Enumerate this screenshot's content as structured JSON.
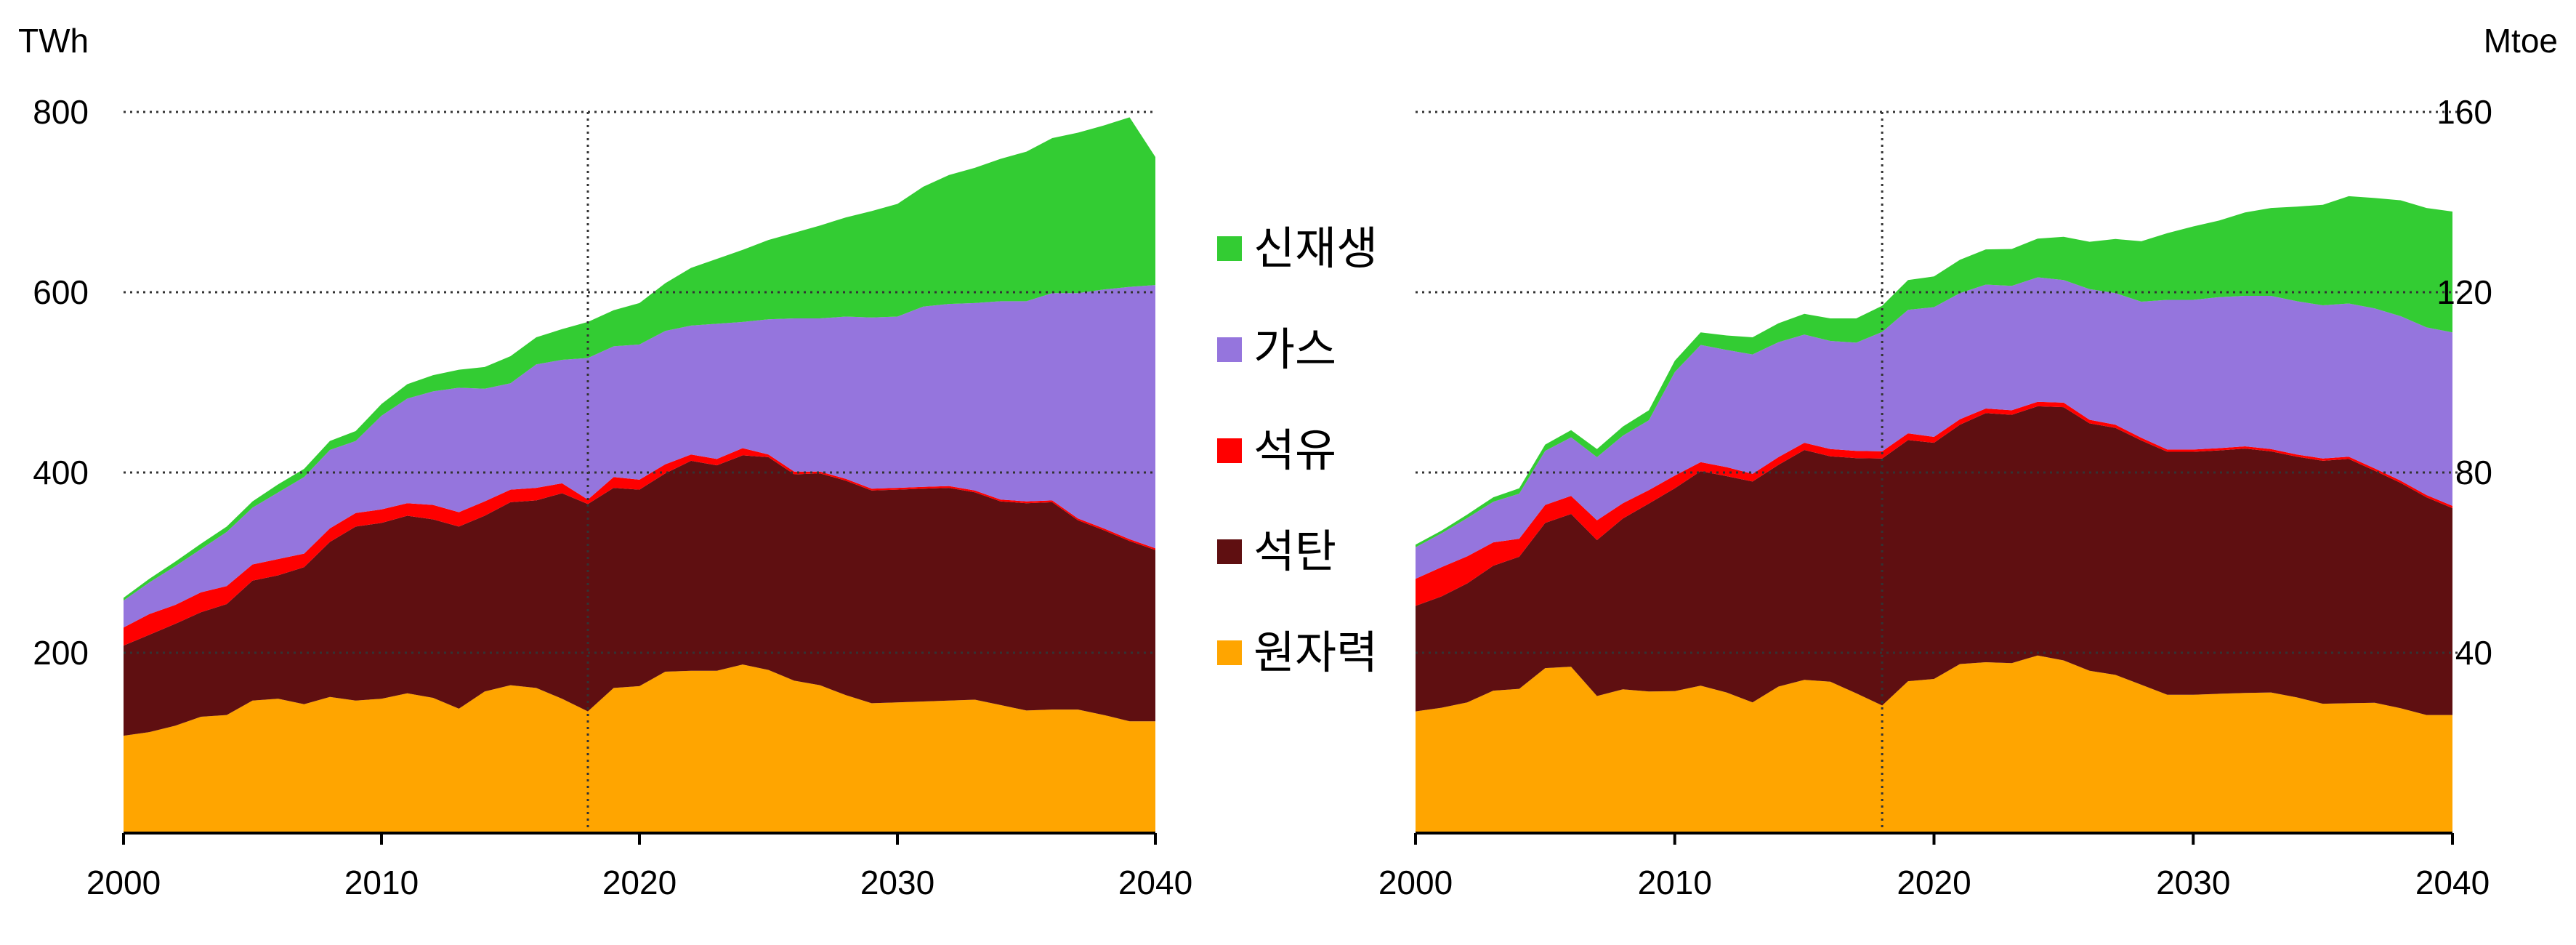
{
  "colors": {
    "renewables": "#33cc33",
    "gas": "#9575dd",
    "oil": "#ff0000",
    "coal": "#5f0f11",
    "nuclear": "#ffa500"
  },
  "legend": {
    "items": [
      {
        "key": "renewables",
        "label": "신재생"
      },
      {
        "key": "gas",
        "label": "가스"
      },
      {
        "key": "oil",
        "label": "석유"
      },
      {
        "key": "coal",
        "label": "석탄"
      },
      {
        "key": "nuclear",
        "label": "원자력"
      }
    ]
  },
  "chart_data": [
    {
      "type": "area",
      "stacked": true,
      "unit": "TWh",
      "x": [
        2000,
        2001,
        2002,
        2003,
        2004,
        2005,
        2006,
        2007,
        2008,
        2009,
        2010,
        2011,
        2012,
        2013,
        2014,
        2015,
        2016,
        2017,
        2018,
        2019,
        2020,
        2021,
        2022,
        2023,
        2024,
        2025,
        2026,
        2027,
        2028,
        2029,
        2030,
        2031,
        2032,
        2033,
        2034,
        2035,
        2036,
        2037,
        2038,
        2039,
        2040
      ],
      "xlim": [
        2000,
        2040
      ],
      "ylim": [
        0,
        800
      ],
      "yticks": [
        200,
        400,
        600,
        800
      ],
      "xticks": [
        2000,
        2010,
        2020,
        2030,
        2040
      ],
      "marker_year": 2018,
      "grid": true,
      "series": [
        {
          "key": "nuclear",
          "name": "원자력",
          "values": [
            108,
            112,
            119,
            129,
            131,
            147,
            149,
            143,
            151,
            147,
            149,
            155,
            150,
            138,
            157,
            164,
            161,
            149,
            135,
            161,
            163,
            179,
            180,
            180,
            187,
            181,
            169,
            164,
            153,
            144,
            145,
            146,
            147,
            148,
            142,
            136,
            137,
            137,
            131,
            124,
            124
          ]
        },
        {
          "key": "coal",
          "name": "석탄",
          "values": [
            100,
            108,
            113,
            116,
            123,
            133,
            137,
            152,
            172,
            193,
            195,
            197,
            198,
            202,
            195,
            203,
            208,
            228,
            230,
            222,
            218,
            220,
            233,
            228,
            232,
            236,
            229,
            235,
            238,
            236,
            236,
            236,
            236,
            230,
            226,
            230,
            230,
            210,
            205,
            200,
            190
          ]
        },
        {
          "key": "oil",
          "name": "석유",
          "values": [
            20,
            23,
            21,
            22,
            20,
            18,
            18,
            15,
            15,
            15,
            15,
            14,
            16,
            16,
            16,
            14,
            14,
            11,
            5,
            12,
            11,
            10,
            7,
            7,
            8,
            3,
            3,
            2,
            2,
            2,
            2,
            2,
            2,
            2,
            2,
            2,
            2,
            2,
            2,
            2,
            2
          ]
        },
        {
          "key": "gas",
          "name": "가스",
          "values": [
            30,
            35,
            43,
            48,
            60,
            63,
            74,
            85,
            87,
            80,
            104,
            116,
            126,
            138,
            125,
            118,
            137,
            137,
            157,
            145,
            150,
            148,
            143,
            150,
            140,
            150,
            170,
            170,
            180,
            190,
            190,
            200,
            202,
            208,
            220,
            222,
            230,
            250,
            265,
            280,
            292
          ]
        },
        {
          "key": "renewables",
          "name": "신재생",
          "values": [
            3,
            4,
            5,
            6,
            6,
            7,
            9,
            9,
            10,
            11,
            13,
            16,
            18,
            20,
            24,
            30,
            30,
            34,
            40,
            40,
            46,
            53,
            64,
            72,
            80,
            88,
            95,
            103,
            110,
            118,
            125,
            133,
            143,
            150,
            158,
            166,
            172,
            178,
            182,
            188,
            142
          ]
        }
      ]
    },
    {
      "type": "area",
      "stacked": true,
      "unit": "Mtoe",
      "x": [
        2000,
        2001,
        2002,
        2003,
        2004,
        2005,
        2006,
        2007,
        2008,
        2009,
        2010,
        2011,
        2012,
        2013,
        2014,
        2015,
        2016,
        2017,
        2018,
        2019,
        2020,
        2021,
        2022,
        2023,
        2024,
        2025,
        2026,
        2027,
        2028,
        2029,
        2030,
        2031,
        2032,
        2033,
        2034,
        2035,
        2036,
        2037,
        2038,
        2039,
        2040
      ],
      "xlim": [
        2000,
        2040
      ],
      "ylim": [
        0,
        160
      ],
      "yticks": [
        40,
        80,
        120,
        160
      ],
      "xticks": [
        2000,
        2010,
        2020,
        2030,
        2040
      ],
      "marker_year": 2018,
      "grid": true,
      "series": [
        {
          "key": "nuclear",
          "name": "원자력",
          "values": [
            27,
            27.8,
            29,
            31.6,
            32,
            36.6,
            36.9,
            30.4,
            31.9,
            31.4,
            31.5,
            32.7,
            31.2,
            29,
            32.5,
            34,
            33.6,
            31,
            28.3,
            33.7,
            34.2,
            37.5,
            37.9,
            37.7,
            39.4,
            38.3,
            36,
            35.1,
            32.9,
            30.7,
            30.7,
            30.9,
            31.1,
            31.2,
            30.1,
            28.7,
            28.8,
            28.9,
            27.7,
            26.2,
            26.2
          ]
        },
        {
          "key": "coal",
          "name": "석탄",
          "values": [
            23.4,
            24.7,
            26.4,
            27.7,
            29.3,
            32.2,
            33.9,
            34.6,
            37.9,
            41.7,
            45,
            47.6,
            48,
            49,
            49.2,
            51,
            50,
            52.2,
            54.8,
            53.5,
            52.4,
            53.1,
            55.3,
            55.1,
            55.3,
            56.2,
            54.9,
            54.8,
            54.2,
            53.9,
            53.9,
            54,
            54.2,
            53.5,
            53.4,
            53.9,
            54.2,
            51.5,
            50,
            48.3,
            45.9
          ]
        },
        {
          "key": "oil",
          "name": "석유",
          "values": [
            6,
            6.5,
            6,
            5.2,
            4,
            4,
            4,
            4.4,
            3.4,
            3,
            2.8,
            2,
            2,
            1.7,
            1.7,
            1.6,
            1.6,
            1.6,
            1.6,
            1.5,
            1.3,
            1.2,
            1,
            1,
            1,
            1,
            0.8,
            0.7,
            0.6,
            0.5,
            0.5,
            0.5,
            0.5,
            0.5,
            0.5,
            0.5,
            0.5,
            0.5,
            0.5,
            0.5,
            0.5
          ]
        },
        {
          "key": "gas",
          "name": "가스",
          "values": [
            7,
            7.5,
            8.5,
            9,
            10,
            12,
            13,
            14,
            15,
            15.5,
            23,
            26,
            26,
            26.5,
            25.5,
            24,
            24,
            24,
            26.5,
            27.4,
            28.8,
            28,
            27.5,
            27.6,
            27.6,
            27.2,
            29,
            29.2,
            30.2,
            33.2,
            33.2,
            33.5,
            33.4,
            34,
            34,
            34,
            34,
            35.5,
            36.5,
            37.2,
            38.5
          ]
        },
        {
          "key": "renewables",
          "name": "신재생",
          "values": [
            0.6,
            0.6,
            0.8,
            1,
            1.2,
            1.4,
            1.6,
            1.8,
            2,
            2.2,
            2.5,
            2.8,
            3.2,
            3.8,
            4.2,
            4.6,
            5,
            5.4,
            5.8,
            6.6,
            6.8,
            7.4,
            7.8,
            8.2,
            8.6,
            9.6,
            10.5,
            12,
            13.4,
            14.8,
            16.3,
            17,
            18.5,
            19.5,
            21,
            22.3,
            23.8,
            24.5,
            25.7,
            26.5,
            26.8
          ]
        }
      ]
    }
  ]
}
